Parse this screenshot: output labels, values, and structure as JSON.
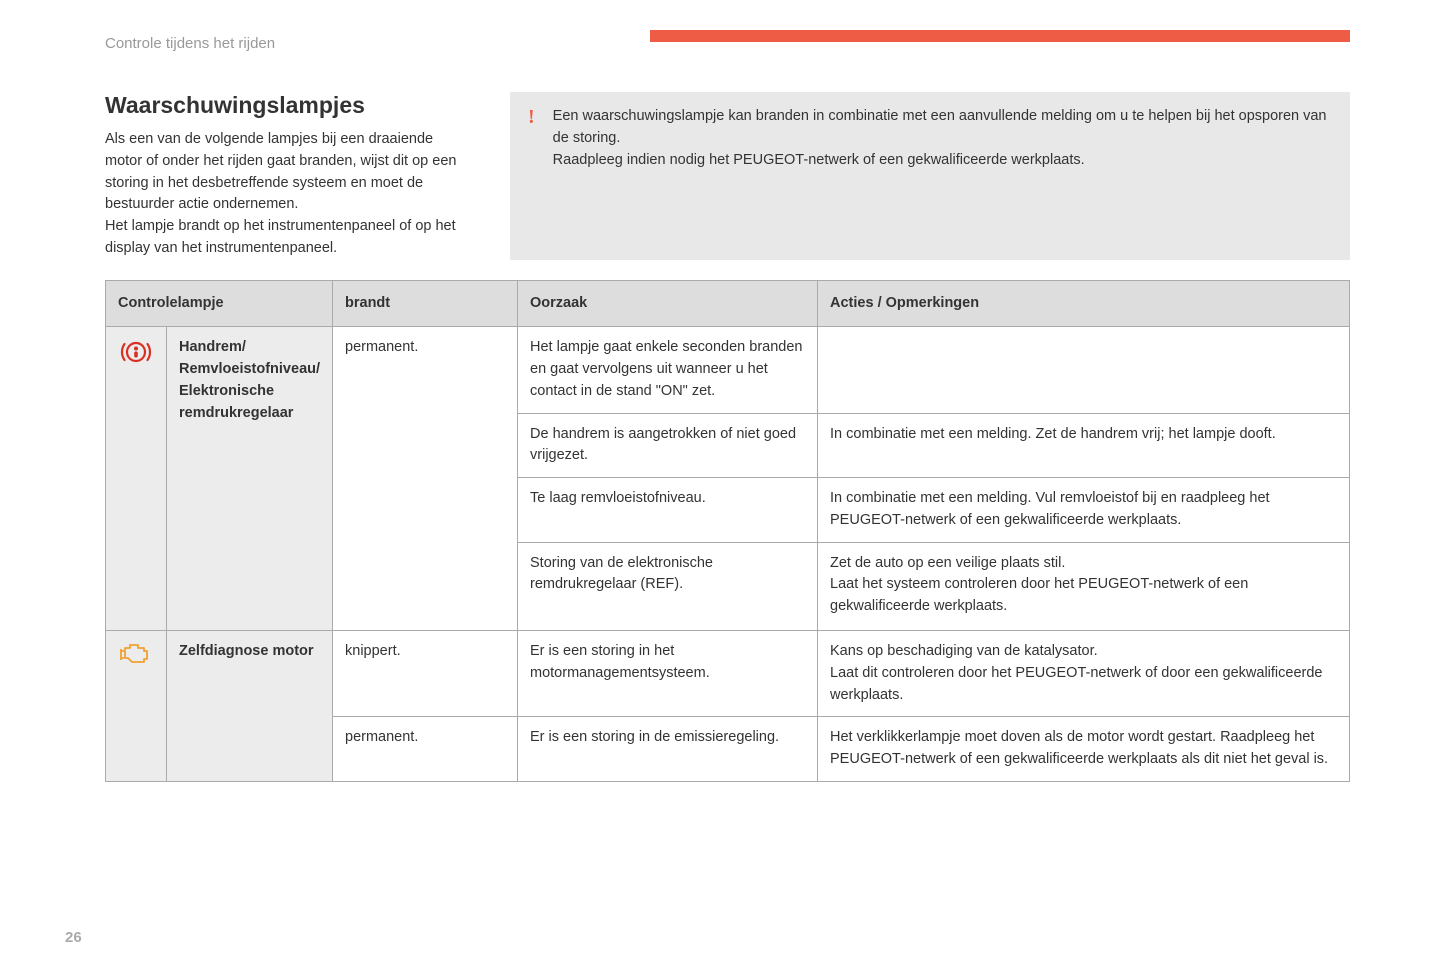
{
  "colors": {
    "accent": "#ee5c46",
    "icon_brake": "#d93025",
    "icon_engine": "#f0a030",
    "header_bg": "#dddddd",
    "row_label_bg": "#ececec",
    "border": "#aaaaaa",
    "infobox_bg": "#e8e8e8",
    "muted_text": "#999999"
  },
  "section_label": "Controle tijdens het rijden",
  "title": "Waarschuwingslampjes",
  "intro_para": "Als een van de volgende lampjes bij een draaiende motor of onder het rijden gaat branden, wijst dit op een storing in het desbetreffende systeem en moet de bestuurder actie ondernemen.\nHet lampje brandt op het instrumentenpaneel of op het display van het instrumentenpaneel.",
  "infobox": {
    "text": "Een waarschuwingslampje kan branden in combinatie met een aanvullende melding om u te helpen bij het opsporen van de storing.\nRaadpleeg indien nodig het PEUGEOT-netwerk of een gekwalificeerde werkplaats."
  },
  "table": {
    "headers": {
      "col1": "Controlelampje",
      "col2": "brandt",
      "col3": "Oorzaak",
      "col4": "Acties / Opmerkingen"
    },
    "groups": [
      {
        "icon": "brake",
        "name": "Handrem/\nRemvloeistofniveau/\nElektronische remdrukregelaar",
        "rows": [
          {
            "brandt": "permanent.",
            "oorzaak": "Het lampje gaat enkele seconden branden en gaat vervolgens uit wanneer u het contact in de stand \"ON\" zet.",
            "actie": ""
          },
          {
            "brandt": "",
            "oorzaak": "De handrem is aangetrokken of niet goed vrijgezet.",
            "actie": "In combinatie met een melding. Zet de handrem vrij; het lampje dooft."
          },
          {
            "brandt": "",
            "oorzaak": "Te laag remvloeistofniveau.",
            "actie": "In combinatie met een melding. Vul remvloeistof bij en raadpleeg het PEUGEOT-netwerk of een gekwalificeerde werkplaats."
          },
          {
            "brandt": "",
            "oorzaak": "Storing van de elektronische remdrukregelaar (REF).",
            "actie": "Zet de auto op een veilige plaats stil.\nLaat het systeem controleren door het PEUGEOT-netwerk of een gekwalificeerde werkplaats."
          }
        ]
      },
      {
        "icon": "engine",
        "name": "Zelfdiagnose motor",
        "rows": [
          {
            "brandt": "knippert.",
            "oorzaak": "Er is een storing in het motormanagementsysteem.",
            "actie": "Kans op beschadiging van de katalysator.\nLaat dit controleren door het PEUGEOT-netwerk of door een gekwalificeerde werkplaats."
          },
          {
            "brandt": "permanent.",
            "oorzaak": "Er is een storing in de emissieregeling.",
            "actie": "Het verklikkerlampje moet doven als de motor wordt gestart. Raadpleeg het PEUGEOT-netwerk of een gekwalificeerde werkplaats als dit niet het geval is."
          }
        ]
      }
    ]
  },
  "page_number": "26"
}
